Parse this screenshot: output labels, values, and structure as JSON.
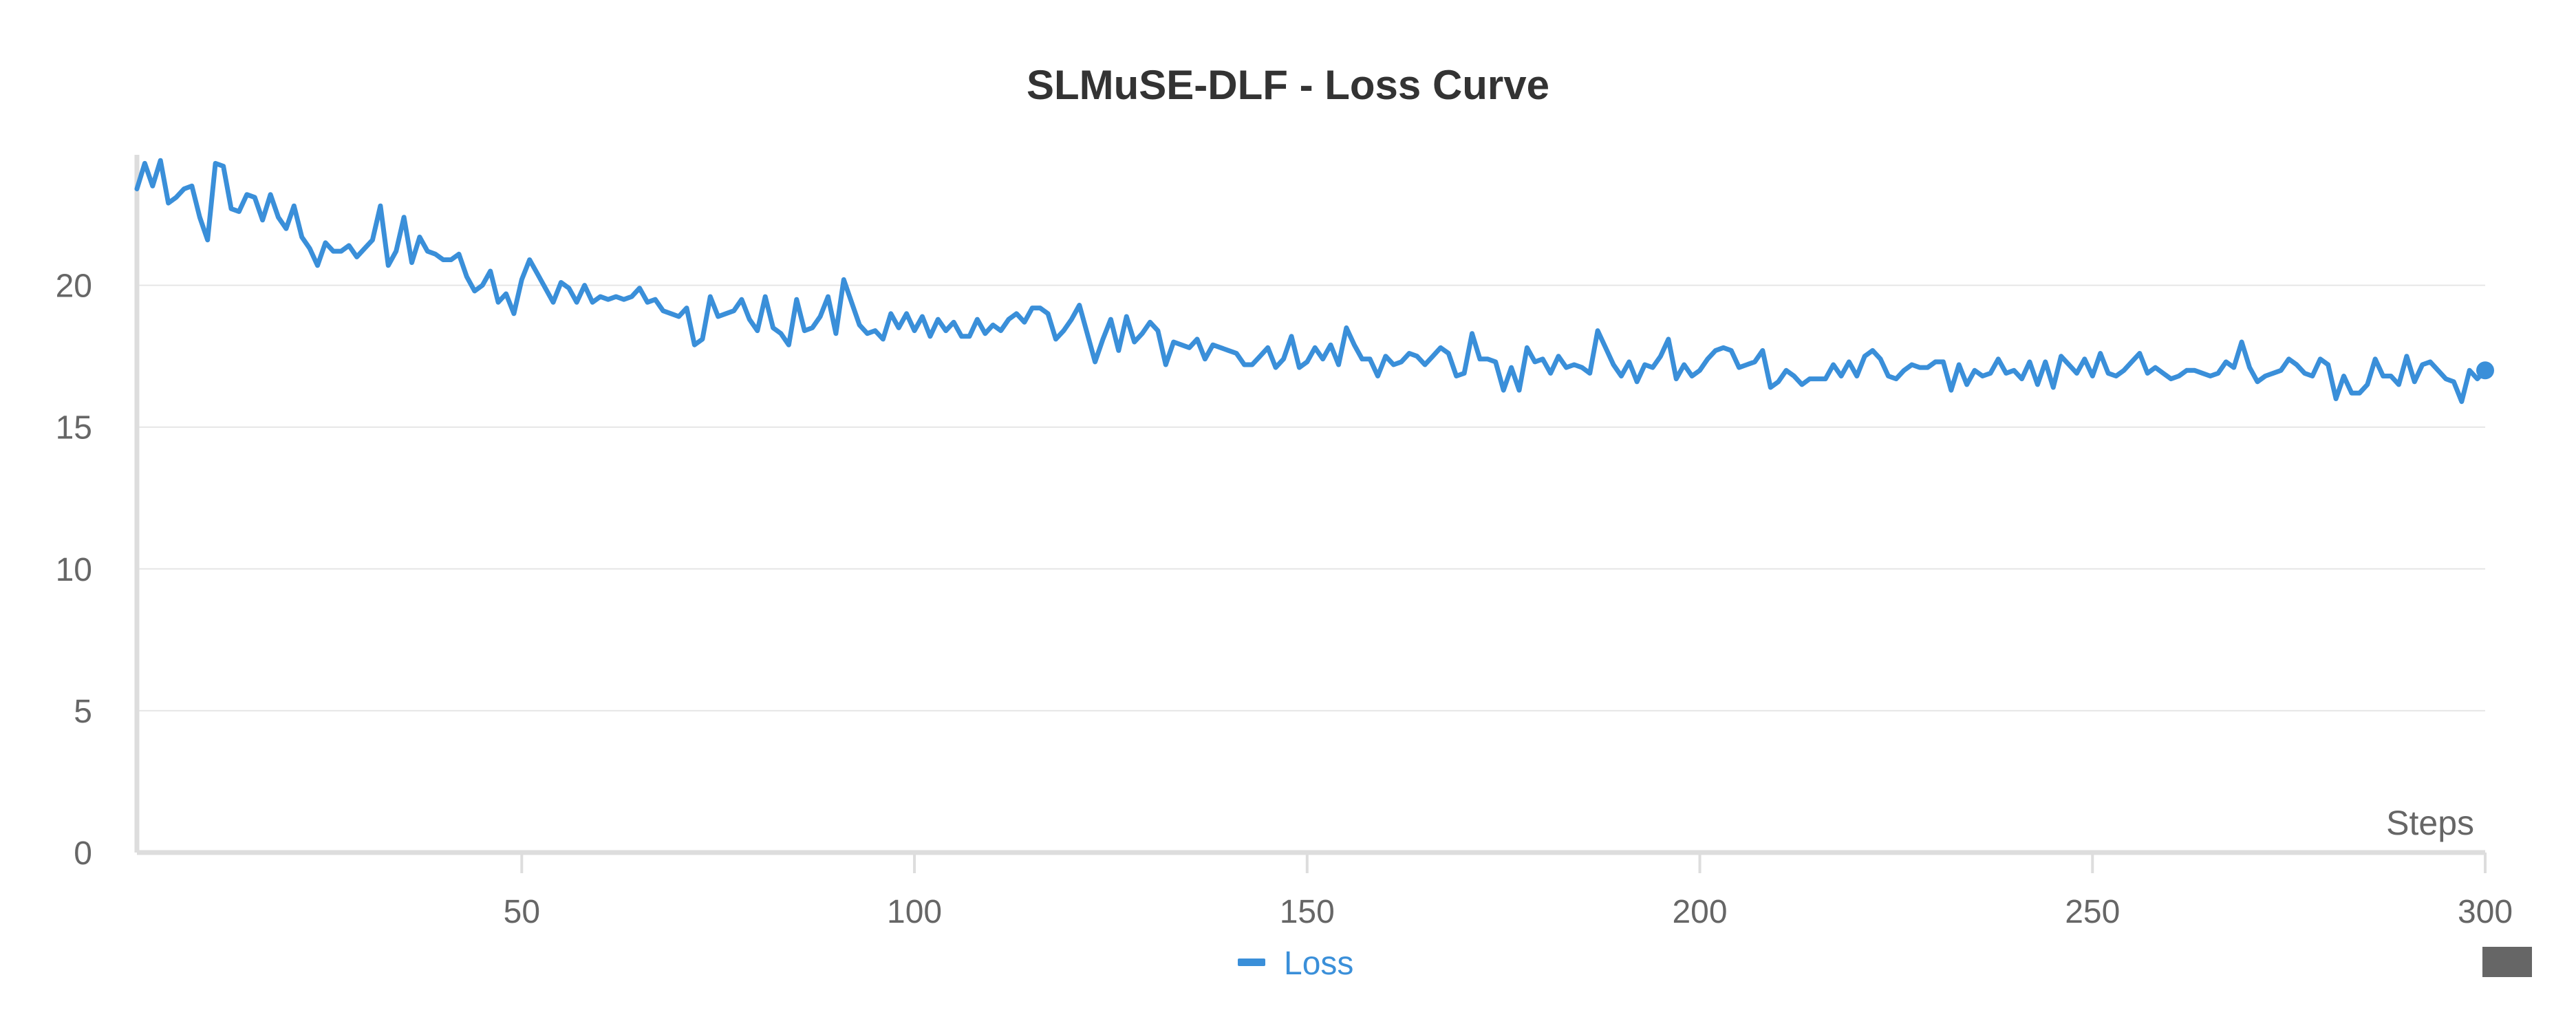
{
  "chart_data": {
    "type": "line",
    "title": "SLMuSE-DLF - Loss Curve",
    "xlabel": "Steps",
    "ylabel": "",
    "xlim": [
      1,
      300
    ],
    "ylim": [
      0,
      24.6
    ],
    "x_ticks": [
      50,
      100,
      150,
      200,
      250,
      300
    ],
    "y_ticks": [
      0,
      5,
      10,
      15,
      20
    ],
    "grid": true,
    "legend": "bottom-center",
    "series": [
      {
        "name": "Loss",
        "color": "#3a8fd9",
        "x_start": 1,
        "x_step": 1,
        "values": [
          23.4,
          24.3,
          23.5,
          24.4,
          22.9,
          23.1,
          23.4,
          23.5,
          22.4,
          21.6,
          24.3,
          24.2,
          22.7,
          22.6,
          23.2,
          23.1,
          22.3,
          23.2,
          22.4,
          22.0,
          22.8,
          21.7,
          21.3,
          20.7,
          21.5,
          21.2,
          21.2,
          21.4,
          21.0,
          21.3,
          21.6,
          22.8,
          20.7,
          21.2,
          22.4,
          20.8,
          21.7,
          21.2,
          21.1,
          20.9,
          20.9,
          21.1,
          20.3,
          19.8,
          20.0,
          20.5,
          19.4,
          19.7,
          19.0,
          20.2,
          20.9,
          20.4,
          19.9,
          19.4,
          20.1,
          19.9,
          19.4,
          20.0,
          19.4,
          19.6,
          19.5,
          19.6,
          19.5,
          19.6,
          19.9,
          19.4,
          19.5,
          19.1,
          19.0,
          18.9,
          19.2,
          17.9,
          18.1,
          19.6,
          18.9,
          19.0,
          19.1,
          19.5,
          18.8,
          18.4,
          19.6,
          18.5,
          18.3,
          17.9,
          19.5,
          18.4,
          18.5,
          18.9,
          19.6,
          18.3,
          20.2,
          19.4,
          18.6,
          18.3,
          18.4,
          18.1,
          19.0,
          18.5,
          19.0,
          18.4,
          18.9,
          18.2,
          18.8,
          18.4,
          18.7,
          18.2,
          18.2,
          18.8,
          18.3,
          18.6,
          18.4,
          18.8,
          19.0,
          18.7,
          19.2,
          19.2,
          19.0,
          18.1,
          18.4,
          18.8,
          19.3,
          18.3,
          17.3,
          18.1,
          18.8,
          17.7,
          18.9,
          18.0,
          18.3,
          18.7,
          18.4,
          17.2,
          18.0,
          17.9,
          17.8,
          18.1,
          17.4,
          17.9,
          17.8,
          17.7,
          17.6,
          17.2,
          17.2,
          17.5,
          17.8,
          17.1,
          17.4,
          18.2,
          17.1,
          17.3,
          17.8,
          17.4,
          17.9,
          17.2,
          18.5,
          17.9,
          17.4,
          17.4,
          16.8,
          17.5,
          17.2,
          17.3,
          17.6,
          17.5,
          17.2,
          17.5,
          17.8,
          17.6,
          16.8,
          16.9,
          18.3,
          17.4,
          17.4,
          17.3,
          16.3,
          17.1,
          16.3,
          17.8,
          17.3,
          17.4,
          16.9,
          17.5,
          17.1,
          17.2,
          17.1,
          16.9,
          18.4,
          17.8,
          17.2,
          16.8,
          17.3,
          16.6,
          17.2,
          17.1,
          17.5,
          18.1,
          16.7,
          17.2,
          16.8,
          17.0,
          17.4,
          17.7,
          17.8,
          17.7,
          17.1,
          17.2,
          17.3,
          17.7,
          16.4,
          16.6,
          17.0,
          16.8,
          16.5,
          16.7,
          16.7,
          16.7,
          17.2,
          16.8,
          17.3,
          16.8,
          17.5,
          17.7,
          17.4,
          16.8,
          16.7,
          17.0,
          17.2,
          17.1,
          17.1,
          17.3,
          17.3,
          16.3,
          17.2,
          16.5,
          17.0,
          16.8,
          16.9,
          17.4,
          16.9,
          17.0,
          16.7,
          17.3,
          16.5,
          17.3,
          16.4,
          17.5,
          17.2,
          16.9,
          17.4,
          16.8,
          17.6,
          16.9,
          16.8,
          17.0,
          17.3,
          17.6,
          16.9,
          17.1,
          16.9,
          16.7,
          16.8,
          17.0,
          17.0,
          16.9,
          16.8,
          16.9,
          17.3,
          17.1,
          18.0,
          17.1,
          16.6,
          16.8,
          16.9,
          17.0,
          17.4,
          17.2,
          16.9,
          16.8,
          17.4,
          17.2,
          16.0,
          16.8,
          16.2,
          16.2,
          16.5,
          17.4,
          16.8,
          16.8,
          16.5,
          17.5,
          16.6,
          17.2,
          17.3,
          17.0,
          16.7,
          16.6,
          15.9,
          17.0,
          16.7,
          17.0
        ]
      }
    ]
  },
  "colors": {
    "line": "#3a8fd9",
    "grid": "#e6e6e6",
    "axis": "#dddddd",
    "text": "#666666",
    "title": "#333333",
    "corner_button": "#666666"
  }
}
